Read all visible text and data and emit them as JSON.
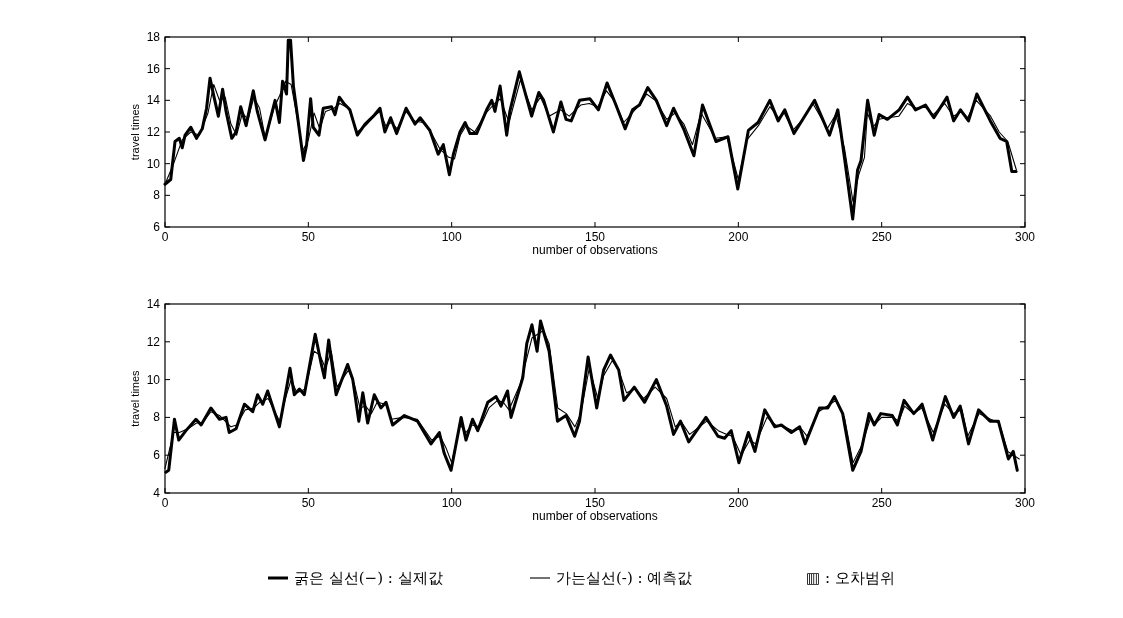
{
  "chart_data": [
    {
      "type": "line",
      "xlabel": "number of observations",
      "ylabel": "travel times",
      "xlim": [
        0,
        300
      ],
      "ylim": [
        6,
        18
      ],
      "xticks": [
        0,
        50,
        100,
        150,
        200,
        250,
        300
      ],
      "yticks": [
        6,
        8,
        10,
        12,
        14,
        16,
        18
      ],
      "grid": false,
      "legend": false,
      "series": [
        {
          "color": "#000000",
          "x": [
            0,
            2,
            3.5,
            5,
            6,
            7,
            9,
            11,
            13,
            14.5,
            15.7,
            17,
            18.6,
            20.1,
            21.3,
            23.3,
            24.8,
            26.4,
            28.3,
            30.8,
            32.2,
            34.9,
            38.4,
            39.9,
            41,
            42.4,
            43,
            43.8,
            44.8,
            48.3,
            49.4,
            50.8,
            51.7,
            53.7,
            55.2,
            58.1,
            59.3,
            60.8,
            62.4,
            64.5,
            67.1,
            69.8,
            72.7,
            75,
            76.7,
            78.7,
            80.8,
            84.1,
            87.2,
            89,
            92.4,
            95.3,
            97.1,
            99.2,
            100.6,
            102.9,
            104.7,
            106.4,
            108.7,
            112.2,
            114,
            115.1,
            116.9,
            119.2,
            120.3,
            123.6,
            127.9,
            130.4,
            132.1,
            135.5,
            138.1,
            139.9,
            141.7,
            144.6,
            148.2,
            151.2,
            154.2,
            157.1,
            160.5,
            163.1,
            165.5,
            168.4,
            171.4,
            175,
            177.4,
            180.9,
            184.5,
            187.5,
            192.2,
            196.4,
            199.8,
            203.5,
            206.9,
            211,
            213.9,
            216.2,
            219.4,
            222.5,
            226.6,
            231.8,
            234.7,
            237,
            239.9,
            241.6,
            242.8,
            245.1,
            247.4,
            249.1,
            252,
            256.1,
            259,
            261.8,
            265.3,
            268.2,
            272.8,
            275.1,
            277.5,
            280.3,
            283.2,
            287.9,
            291.3,
            293.6,
            295.4,
            296.9
          ],
          "values": [
            8.7,
            9.0,
            11.4,
            11.6,
            11.0,
            11.8,
            12.3,
            11.6,
            12.2,
            13.5,
            15.4,
            14.3,
            13.0,
            14.7,
            13.3,
            11.6,
            12.0,
            13.6,
            12.4,
            14.6,
            13.3,
            11.5,
            14.0,
            12.6,
            15.2,
            14.4,
            17.8,
            17.8,
            14.9,
            10.2,
            11.2,
            14.1,
            12.3,
            11.8,
            13.5,
            13.6,
            13.1,
            14.2,
            13.8,
            13.4,
            11.8,
            12.5,
            13.0,
            13.5,
            12.0,
            12.9,
            11.9,
            13.5,
            12.5,
            12.9,
            12.1,
            10.6,
            11.2,
            9.3,
            10.6,
            12.0,
            12.6,
            11.9,
            11.9,
            13.4,
            14.0,
            13.3,
            14.9,
            11.8,
            13.3,
            15.8,
            13.0,
            14.5,
            14.0,
            12.0,
            13.9,
            12.8,
            12.7,
            14.0,
            14.1,
            13.4,
            15.1,
            13.8,
            12.2,
            13.4,
            13.7,
            14.8,
            14.0,
            12.4,
            13.5,
            12.2,
            10.5,
            13.7,
            11.4,
            11.7,
            8.4,
            12.1,
            12.6,
            14.0,
            12.7,
            13.4,
            11.9,
            12.8,
            14.0,
            11.8,
            13.4,
            10.4,
            6.5,
            9.6,
            10.2,
            14.0,
            11.8,
            13.1,
            12.8,
            13.4,
            14.2,
            13.4,
            13.7,
            12.9,
            14.2,
            12.7,
            13.4,
            12.7,
            14.4,
            12.7,
            11.6,
            11.4,
            9.5,
            9.5
          ]
        },
        {
          "color": "#000000",
          "x": [
            0,
            3,
            6,
            9,
            12,
            15,
            17,
            19,
            21,
            23,
            25,
            27,
            29,
            31,
            33,
            35,
            38,
            40,
            42,
            44,
            46,
            48,
            50,
            52,
            54,
            56,
            59,
            61,
            64,
            67,
            70,
            73,
            75,
            77,
            79,
            81,
            84,
            87,
            90,
            93,
            96,
            99,
            101,
            103,
            105,
            108,
            112,
            115,
            117,
            120,
            124,
            128,
            131,
            134,
            138,
            141,
            145,
            148,
            151,
            154,
            157,
            160,
            163,
            166,
            168,
            171,
            175,
            178,
            181,
            184,
            187,
            192,
            196,
            200,
            203,
            207,
            211,
            214,
            216,
            219,
            222,
            226,
            231,
            234,
            237,
            240,
            242,
            244,
            245,
            247,
            249,
            252,
            256,
            259,
            262,
            265,
            268,
            272,
            275,
            278,
            280,
            283,
            288,
            291,
            294,
            297
          ],
          "values": [
            8.7,
            10.0,
            11.5,
            12.0,
            11.8,
            13.2,
            15.0,
            14.0,
            14.2,
            12.5,
            11.8,
            13.2,
            12.8,
            14.2,
            13.5,
            11.6,
            13.5,
            14.3,
            15.2,
            15.0,
            13.0,
            10.8,
            11.5,
            13.2,
            12.2,
            13.3,
            13.5,
            13.8,
            13.5,
            12.0,
            12.4,
            13.0,
            13.3,
            12.4,
            12.6,
            12.2,
            13.3,
            12.7,
            12.6,
            11.9,
            10.9,
            10.4,
            10.3,
            11.8,
            12.4,
            12.0,
            13.2,
            13.8,
            14.1,
            12.6,
            15.3,
            13.4,
            14.2,
            13.0,
            13.4,
            13.0,
            13.7,
            13.8,
            13.6,
            14.6,
            13.9,
            12.6,
            13.2,
            13.8,
            14.4,
            14.0,
            12.8,
            13.2,
            12.5,
            11.2,
            13.2,
            11.6,
            11.7,
            9.0,
            11.5,
            12.4,
            13.6,
            12.9,
            13.2,
            12.1,
            12.7,
            13.8,
            12.2,
            13.1,
            11.0,
            7.6,
            9.3,
            10.4,
            13.2,
            12.3,
            12.8,
            12.9,
            13.0,
            13.8,
            13.5,
            13.6,
            13.1,
            13.8,
            13.0,
            13.3,
            12.9,
            14.0,
            13.0,
            12.0,
            11.4,
            9.6
          ]
        }
      ]
    },
    {
      "type": "line",
      "xlabel": "number of observations",
      "ylabel": "travel times",
      "xlim": [
        0,
        300
      ],
      "ylim": [
        4,
        14
      ],
      "xticks": [
        0,
        50,
        100,
        150,
        200,
        250,
        300
      ],
      "yticks": [
        4,
        6,
        8,
        10,
        12,
        14
      ],
      "grid": false,
      "legend": "bottom",
      "annotations": [
        "▥ : 오차범위"
      ],
      "series": [
        {
          "name": "굵은 실선(−) : 실제값",
          "color": "#000000",
          "x": [
            0.3,
            1.3,
            3.3,
            4.8,
            7.3,
            10.8,
            12.6,
            16,
            19,
            21.3,
            22.4,
            24.8,
            27.7,
            30.6,
            32.3,
            34.1,
            35.8,
            39.9,
            42.2,
            43.6,
            45.1,
            46.9,
            48.6,
            52.4,
            54.4,
            55.6,
            57.1,
            59.7,
            63.7,
            65.5,
            67.6,
            69,
            70.7,
            73,
            75.3,
            77.1,
            79.4,
            83.5,
            88.1,
            92.8,
            95.7,
            97.4,
            99.8,
            103.3,
            105,
            107.3,
            109.1,
            112.6,
            115.5,
            117.2,
            119.5,
            120.7,
            124.8,
            126.2,
            128,
            129.8,
            131,
            134,
            136.9,
            139.9,
            142.9,
            144.6,
            147.6,
            150.6,
            153,
            155.4,
            158.3,
            160.1,
            163.7,
            167.3,
            171.4,
            175,
            177.4,
            179.8,
            182.7,
            188.7,
            192.9,
            195.2,
            197.5,
            200.2,
            203.5,
            205.8,
            209.2,
            212.7,
            215,
            218.5,
            221.4,
            223.3,
            228.3,
            231.2,
            233.5,
            236.4,
            239.9,
            242.8,
            245.6,
            247.4,
            249.7,
            253.7,
            255.5,
            257.8,
            261.2,
            264.1,
            267.8,
            272.2,
            275.1,
            277.4,
            280.3,
            283.8,
            287.8,
            290.7,
            294.2,
            295.9,
            297.3
          ],
          "values": [
            5.1,
            5.2,
            7.9,
            6.8,
            7.3,
            7.9,
            7.6,
            8.5,
            7.9,
            8.0,
            7.2,
            7.4,
            8.7,
            8.3,
            9.2,
            8.7,
            9.4,
            7.5,
            9.4,
            10.6,
            9.2,
            9.5,
            9.2,
            12.4,
            10.9,
            10.1,
            12.1,
            9.2,
            10.8,
            10.0,
            7.8,
            9.3,
            7.7,
            9.2,
            8.5,
            8.8,
            7.6,
            8.1,
            7.8,
            6.6,
            7.2,
            6.1,
            5.2,
            8.0,
            6.8,
            7.9,
            7.3,
            8.8,
            9.1,
            8.6,
            9.4,
            8.0,
            10.1,
            11.9,
            12.9,
            11.5,
            13.1,
            11.5,
            7.8,
            8.1,
            7.0,
            7.8,
            11.2,
            8.5,
            10.5,
            11.3,
            10.5,
            8.9,
            9.6,
            8.8,
            10.0,
            8.6,
            7.1,
            7.8,
            6.7,
            8.0,
            7.0,
            6.9,
            7.3,
            5.6,
            7.2,
            6.2,
            8.4,
            7.5,
            7.6,
            7.2,
            7.5,
            6.6,
            8.5,
            8.5,
            9.1,
            8.2,
            5.2,
            6.2,
            8.2,
            7.6,
            8.2,
            8.1,
            7.6,
            8.9,
            8.2,
            8.7,
            6.8,
            9.1,
            8.0,
            8.6,
            6.6,
            8.4,
            7.8,
            7.8,
            5.8,
            6.2,
            5.2
          ]
        },
        {
          "name": "가는실선(-) : 예측값",
          "color": "#000000",
          "x": [
            0,
            3,
            5,
            8,
            11,
            13,
            16,
            19,
            21,
            23,
            25,
            28,
            31,
            33,
            36,
            40,
            42,
            44,
            46,
            49,
            52,
            54,
            56,
            58,
            60,
            64,
            66,
            68,
            70,
            72,
            74,
            77,
            79,
            83,
            88,
            93,
            96,
            98,
            100,
            103,
            105,
            107,
            110,
            113,
            116,
            118,
            120,
            124,
            128,
            130,
            132,
            134,
            137,
            140,
            143,
            145,
            148,
            151,
            153,
            156,
            158,
            161,
            164,
            167,
            171,
            175,
            178,
            180,
            183,
            189,
            193,
            196,
            198,
            201,
            204,
            206,
            210,
            213,
            216,
            219,
            222,
            224,
            228,
            232,
            234,
            237,
            240,
            243,
            246,
            248,
            250,
            254,
            256,
            258,
            261,
            264,
            268,
            272,
            275,
            278,
            280,
            284,
            288,
            291,
            294,
            296,
            298
          ],
          "values": [
            5.3,
            7.2,
            7.2,
            7.4,
            7.7,
            7.7,
            8.3,
            8.1,
            7.8,
            7.5,
            7.6,
            8.4,
            8.5,
            8.8,
            9.0,
            7.8,
            9.0,
            10.0,
            9.3,
            9.5,
            11.5,
            11.3,
            10.6,
            11.5,
            9.6,
            10.5,
            9.8,
            8.5,
            8.6,
            8.2,
            8.8,
            8.7,
            7.9,
            8.0,
            7.9,
            6.8,
            7.0,
            6.4,
            5.6,
            7.6,
            7.2,
            7.6,
            7.5,
            8.5,
            8.9,
            8.8,
            8.4,
            9.8,
            12.2,
            12.4,
            12.6,
            11.9,
            8.5,
            8.2,
            7.5,
            8.2,
            10.6,
            9.0,
            10.2,
            11.0,
            10.6,
            9.3,
            9.5,
            9.0,
            9.6,
            9.0,
            7.5,
            7.8,
            7.1,
            7.8,
            7.3,
            7.1,
            7.0,
            6.0,
            6.8,
            6.6,
            8.0,
            7.6,
            7.5,
            7.3,
            7.4,
            7.0,
            8.3,
            8.7,
            8.9,
            8.0,
            5.6,
            6.5,
            7.9,
            7.7,
            8.0,
            8.0,
            7.8,
            8.6,
            8.2,
            8.5,
            7.2,
            8.7,
            8.2,
            8.4,
            7.0,
            8.2,
            7.9,
            7.7,
            6.2,
            6.0,
            5.8
          ]
        }
      ]
    }
  ]
}
